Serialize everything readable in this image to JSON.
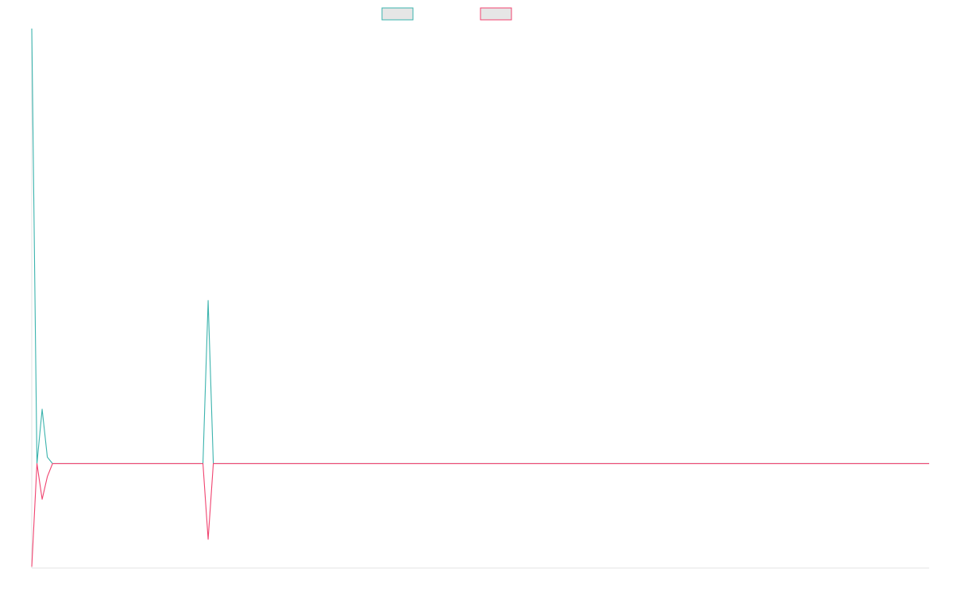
{
  "chart_data": {
    "type": "line",
    "title": "",
    "xlabel": "",
    "ylabel": "",
    "legend": {
      "placement": "top-center"
    },
    "grid": false,
    "x_count": 174,
    "ylim": [
      -0.24,
      1.0
    ],
    "series": [
      {
        "name": "",
        "color": "#3bb3ad",
        "fill": "#e6e6e6",
        "points": [
          [
            0,
            1.0
          ],
          [
            1,
            0.0
          ],
          [
            2,
            0.125
          ],
          [
            3,
            0.015
          ],
          [
            4,
            0.0
          ],
          [
            173,
            0.0
          ]
        ],
        "spikes": [
          [
            33,
            0.0
          ],
          [
            34,
            0.375
          ],
          [
            35,
            0.0
          ]
        ]
      },
      {
        "name": "",
        "color": "#f0436f",
        "fill": "#e6e6e6",
        "points": [
          [
            0,
            -0.237
          ],
          [
            1,
            0.0
          ],
          [
            2,
            -0.082
          ],
          [
            3,
            -0.03
          ],
          [
            4,
            0.0
          ],
          [
            173,
            0.0
          ]
        ],
        "spikes": [
          [
            33,
            0.0
          ],
          [
            34,
            -0.174
          ],
          [
            35,
            0.0
          ]
        ]
      }
    ]
  }
}
